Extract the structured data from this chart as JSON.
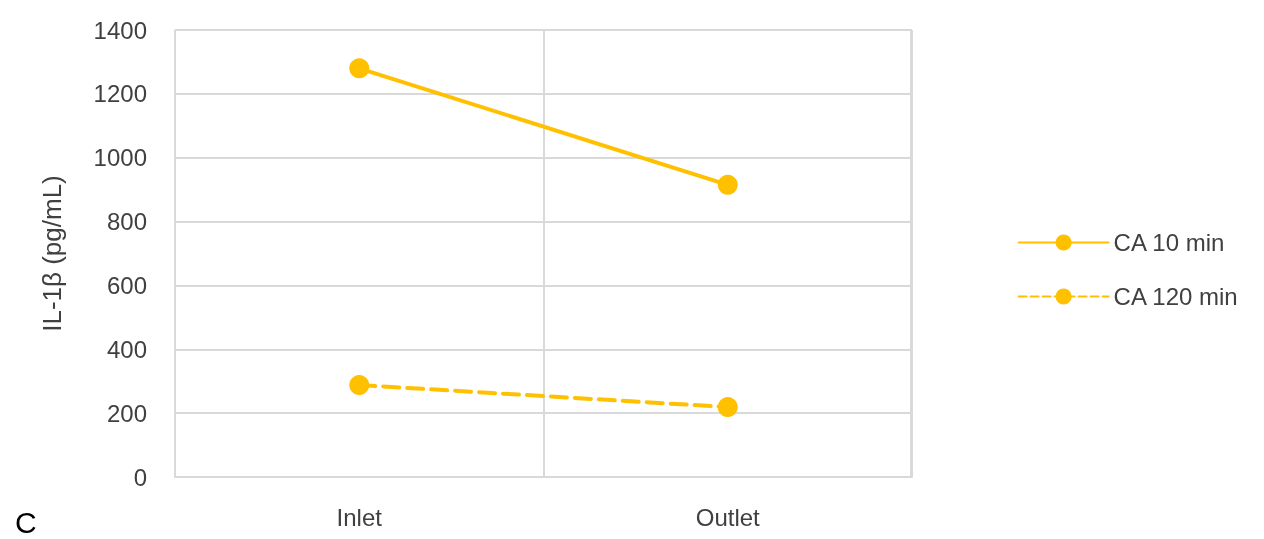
{
  "chart_data": {
    "type": "line",
    "ylabel": "IL-1β (pg/mL)",
    "categories": [
      "Inlet",
      "Outlet"
    ],
    "series": [
      {
        "name": "CA 10 min",
        "color": "#ffc000",
        "values": [
          1280,
          915
        ],
        "line_style": "solid"
      },
      {
        "name": "CA 120 min",
        "color": "#ffc000",
        "values": [
          288,
          219
        ],
        "line_style": "dashed"
      }
    ],
    "ylim": [
      0,
      1400
    ],
    "yticks": [
      0,
      200,
      400,
      600,
      800,
      1000,
      1200,
      1400
    ],
    "grid": true,
    "legend": "right",
    "marker": "circle",
    "annotations": [
      "C"
    ]
  }
}
